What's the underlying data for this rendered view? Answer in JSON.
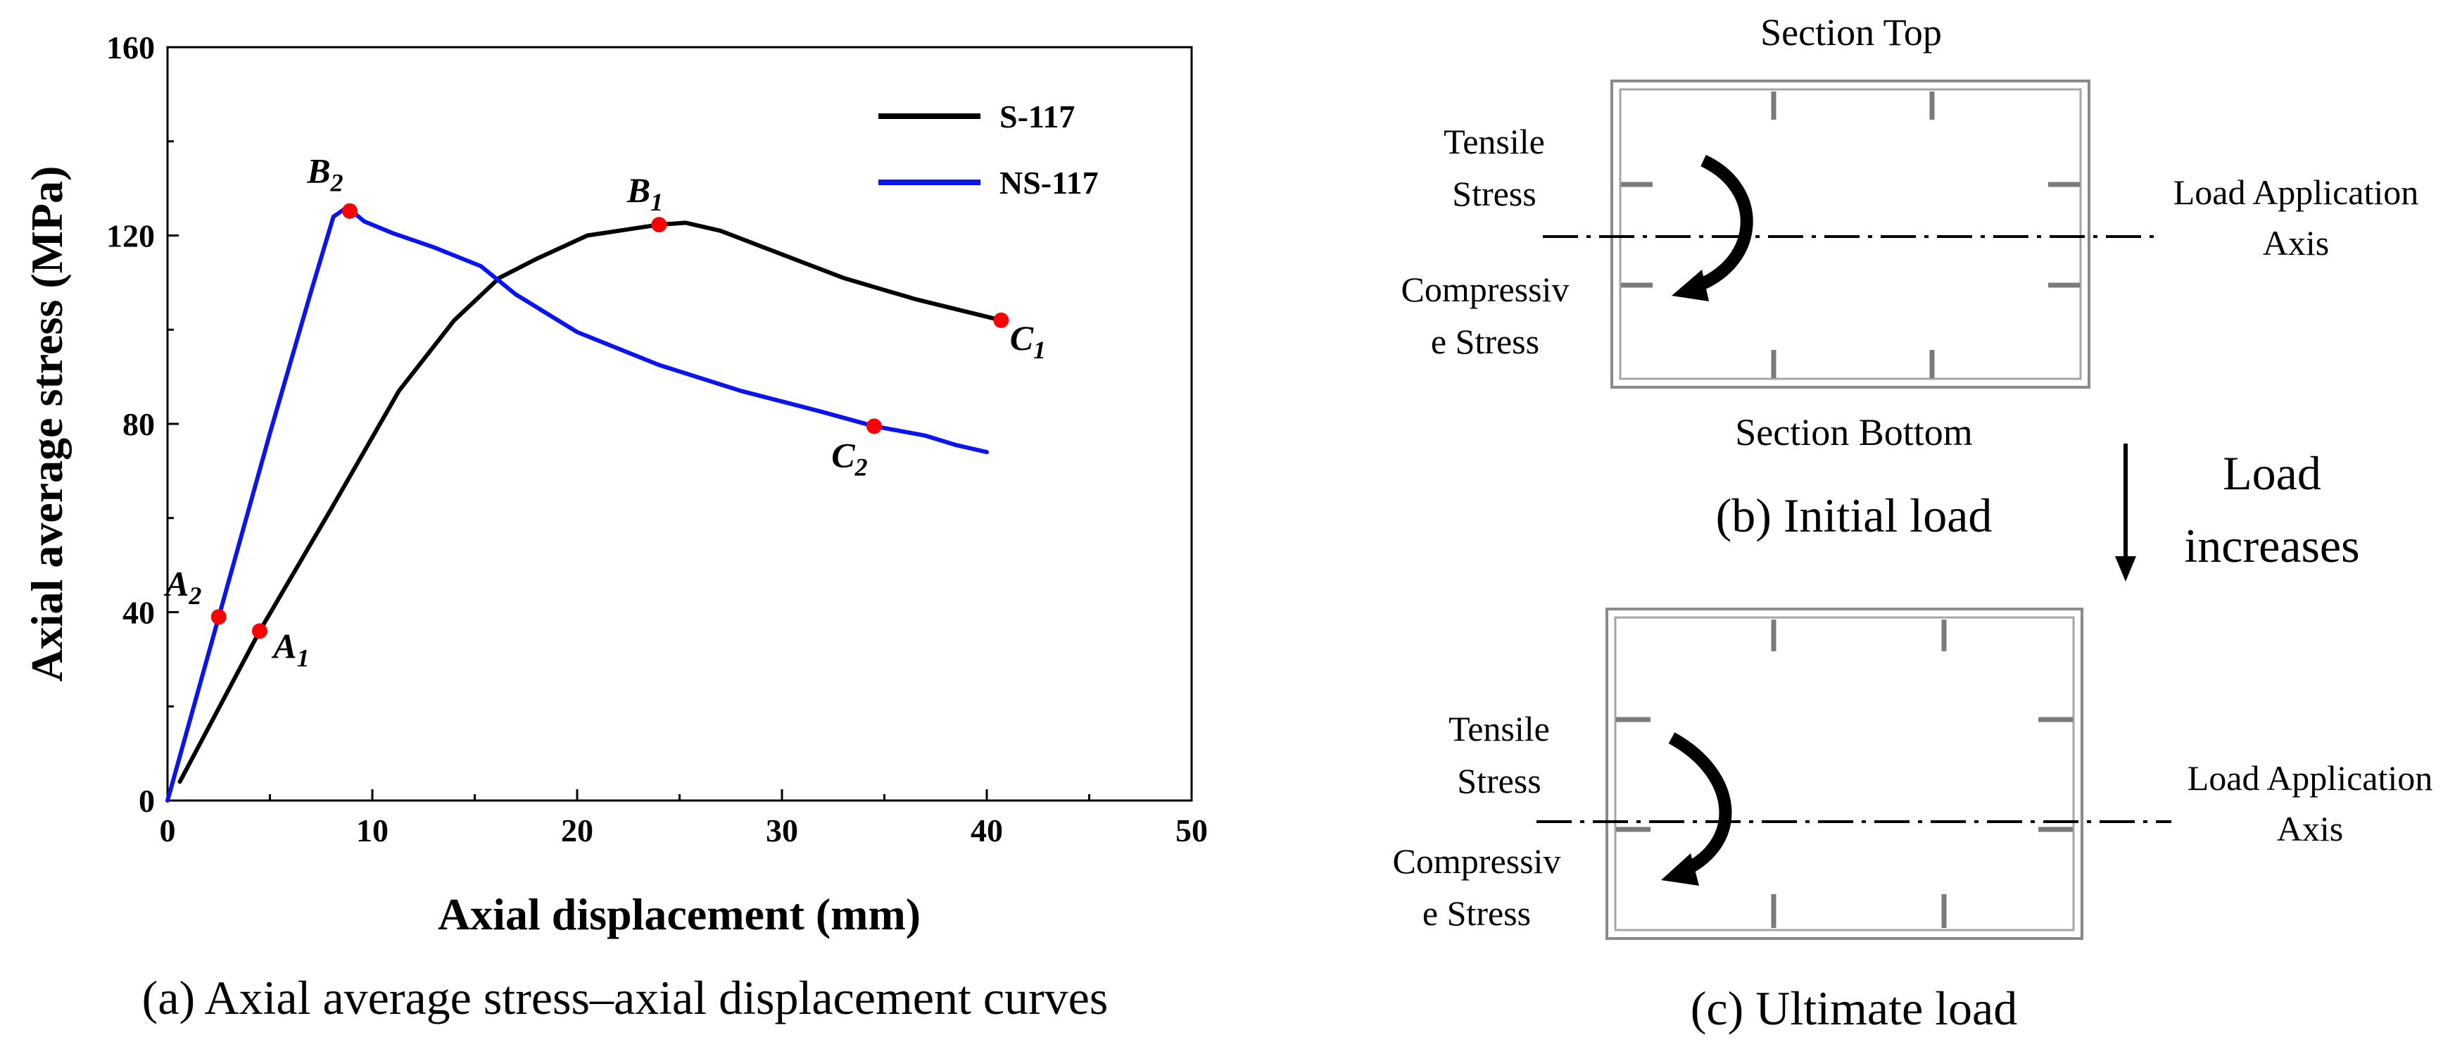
{
  "chart_data": {
    "type": "line",
    "title": "",
    "xlabel": "Axial displacement (mm)",
    "ylabel": "Axial average stress (MPa)",
    "xlim": [
      0,
      50
    ],
    "ylim": [
      0,
      160
    ],
    "x_ticks": [
      0,
      10,
      20,
      30,
      40,
      50
    ],
    "y_ticks": [
      0,
      40,
      80,
      120,
      160
    ],
    "x_tick_labels": [
      "0",
      "10",
      "20",
      "30",
      "40",
      "50"
    ],
    "y_tick_labels": [
      "0",
      "40",
      "80",
      "120",
      "160"
    ],
    "grid": false,
    "legend_position": "top-right",
    "caption": "(a) Axial average stress–axial displacement curves",
    "series": [
      {
        "name": "S-117",
        "color": "#000000",
        "points": [
          [
            0.6,
            4
          ],
          [
            4.5,
            36
          ],
          [
            8,
            62
          ],
          [
            11.3,
            87
          ],
          [
            14,
            102
          ],
          [
            16.2,
            111
          ],
          [
            18,
            115
          ],
          [
            20.5,
            120
          ],
          [
            24,
            122.3
          ],
          [
            25.3,
            122.7
          ],
          [
            27,
            121
          ],
          [
            30,
            116
          ],
          [
            33,
            111
          ],
          [
            36.5,
            106.5
          ],
          [
            40.7,
            102
          ]
        ]
      },
      {
        "name": "NS-117",
        "color": "#0a14f0",
        "points": [
          [
            0,
            0
          ],
          [
            2.5,
            39
          ],
          [
            5,
            78
          ],
          [
            7,
            108
          ],
          [
            8.1,
            124
          ],
          [
            8.6,
            125.5
          ],
          [
            9,
            125.2
          ],
          [
            9.6,
            123
          ],
          [
            11,
            120.5
          ],
          [
            13,
            117.5
          ],
          [
            15.3,
            113.5
          ],
          [
            17,
            107.5
          ],
          [
            20,
            99.5
          ],
          [
            24,
            92.5
          ],
          [
            28,
            87
          ],
          [
            32,
            82.5
          ],
          [
            34.5,
            79.5
          ],
          [
            37,
            77.5
          ],
          [
            38.5,
            75.5
          ],
          [
            40,
            74
          ]
        ]
      }
    ],
    "markers": [
      {
        "id": "A1",
        "letter": "A",
        "sub": "1",
        "x": 4.5,
        "y": 36
      },
      {
        "id": "B1",
        "letter": "B",
        "sub": "1",
        "x": 24,
        "y": 122.3
      },
      {
        "id": "C1",
        "letter": "C",
        "sub": "1",
        "x": 40.7,
        "y": 102
      },
      {
        "id": "A2",
        "letter": "A",
        "sub": "2",
        "x": 2.5,
        "y": 39
      },
      {
        "id": "B2",
        "letter": "B",
        "sub": "2",
        "x": 8.9,
        "y": 125.2
      },
      {
        "id": "C2",
        "letter": "C",
        "sub": "2",
        "x": 34.5,
        "y": 79.5
      }
    ],
    "marker_color": "#ff0000"
  },
  "diagram": {
    "panel_b": {
      "top_label": "Section Top",
      "bottom_label": "Section Bottom",
      "tensile_line1": "Tensile",
      "tensile_line2": "Stress",
      "compressive_line1": "Compressiv",
      "compressive_line2": "e Stress",
      "axis_line1": "Load Application",
      "axis_line2": "Axis",
      "caption": "(b) Initial load"
    },
    "arrow_text_line1": "Load",
    "arrow_text_line2": "increases",
    "panel_c": {
      "tensile_line1": "Tensile",
      "tensile_line2": "Stress",
      "compressive_line1": "Compressiv",
      "compressive_line2": "e Stress",
      "axis_line1": "Load Application",
      "axis_line2": "Axis",
      "caption": "(c) Ultimate load"
    }
  }
}
